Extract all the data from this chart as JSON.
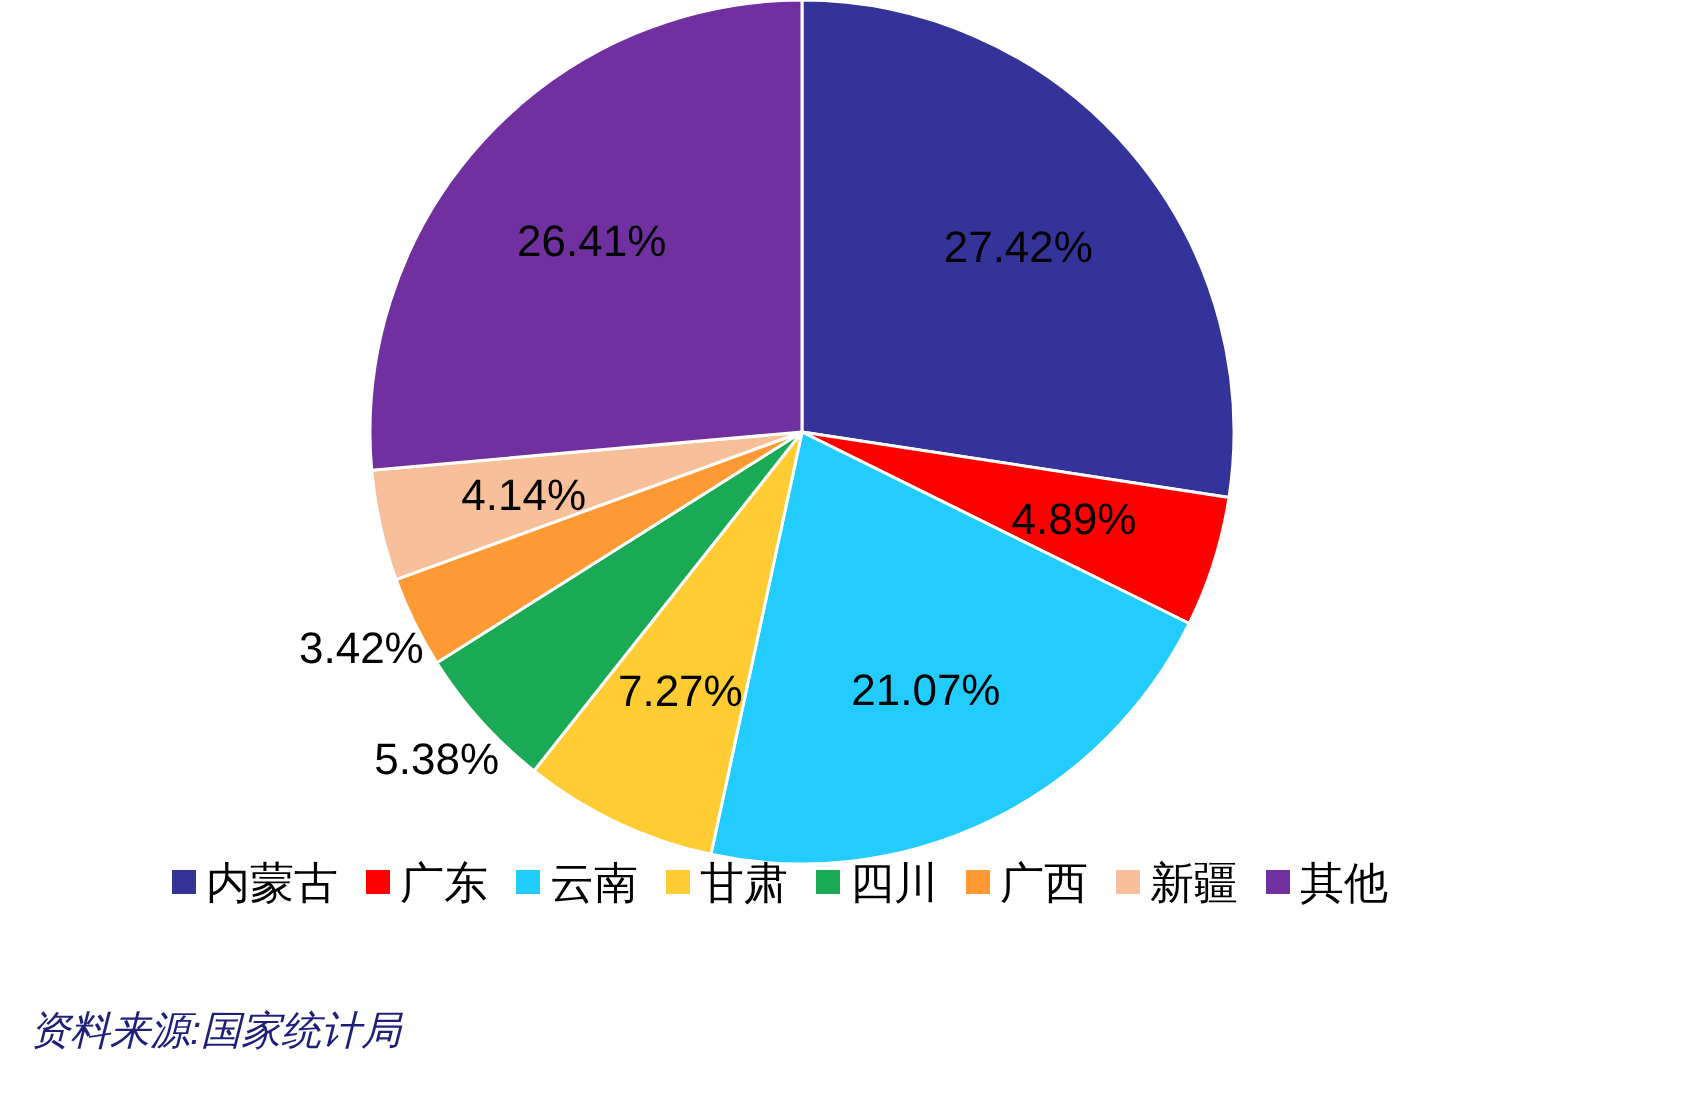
{
  "chart_data": {
    "type": "pie",
    "categories": [
      "内蒙古",
      "广东",
      "云南",
      "甘肃",
      "四川",
      "广西",
      "新疆",
      "其他"
    ],
    "values": [
      27.42,
      4.89,
      21.07,
      7.27,
      5.38,
      3.42,
      4.14,
      26.41
    ],
    "colors": [
      "#333399",
      "#ff0000",
      "#22ccff",
      "#ffcc33",
      "#1aaa55",
      "#ff9933",
      "#f8c09a",
      "#7030a0"
    ],
    "value_labels": [
      "27.42%",
      "4.89%",
      "21.07%",
      "7.27%",
      "5.38%",
      "3.42%",
      "4.14%",
      "26.41%"
    ],
    "legend": "bottom",
    "annotations": [
      "资料来源:国家统计局"
    ]
  }
}
